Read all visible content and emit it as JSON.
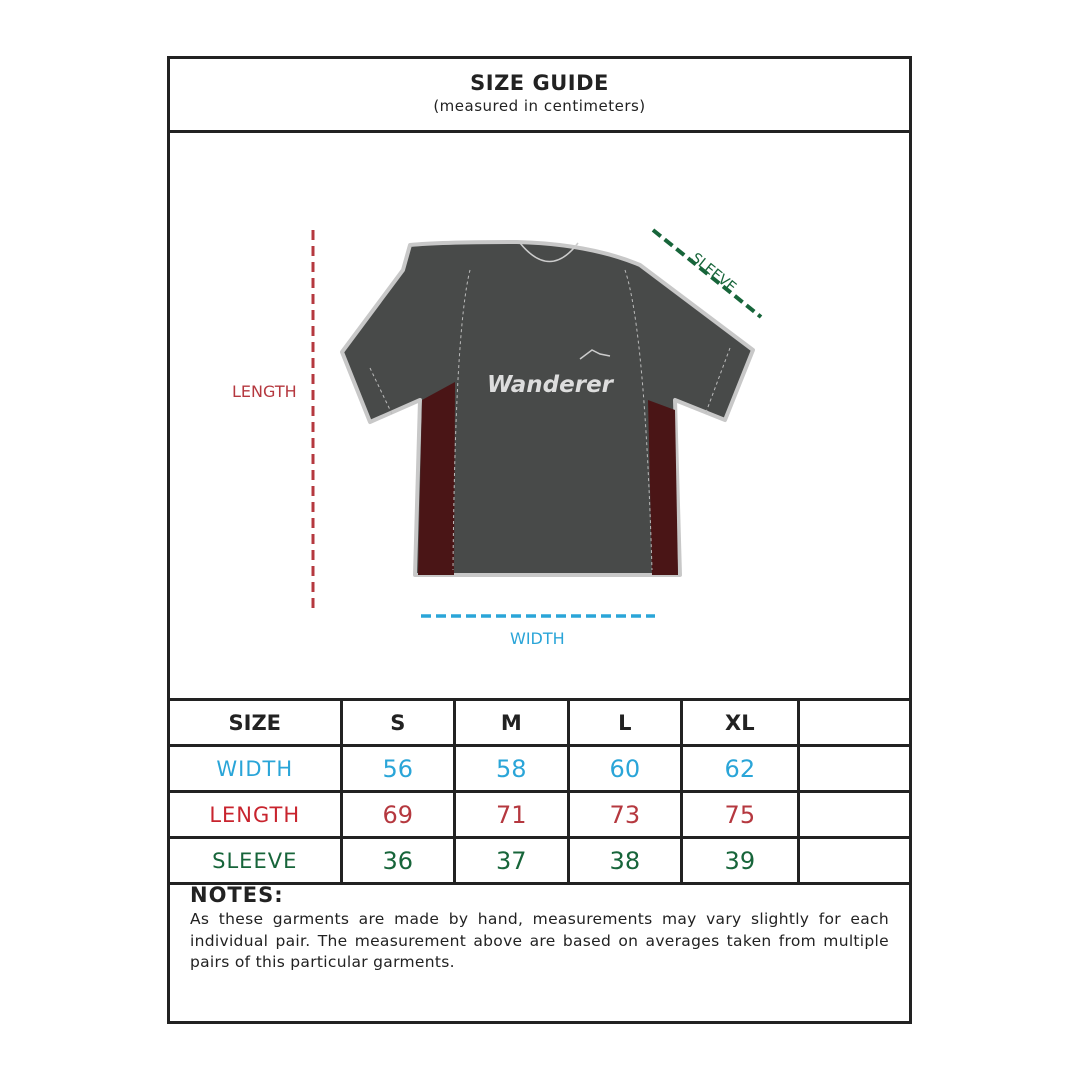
{
  "header": {
    "title": "SIZE GUIDE",
    "subtitle": "(measured in centimeters)"
  },
  "figure": {
    "length_label": "LENGTH",
    "width_label": "WIDTH",
    "sleeve_label": "SLEEVE",
    "shirt_logo_text": "Wanderer",
    "colors": {
      "length": "#b5383f",
      "width": "#2aa5d8",
      "sleeve": "#17653a",
      "shirt": "#484a49",
      "panel": "#4a1516"
    }
  },
  "table": {
    "headers": [
      "SIZE",
      "S",
      "M",
      "L",
      "XL",
      ""
    ],
    "rows": [
      {
        "label": "WIDTH",
        "values": [
          "56",
          "58",
          "60",
          "62",
          ""
        ],
        "color": "#2aa5d8",
        "label_color": "#2aa5d8"
      },
      {
        "label": "LENGTH",
        "values": [
          "69",
          "71",
          "73",
          "75",
          ""
        ],
        "color": "#b5383f",
        "label_color": "#c8242e"
      },
      {
        "label": "SLEEVE",
        "values": [
          "36",
          "37",
          "38",
          "39",
          ""
        ],
        "color": "#17653a",
        "label_color": "#17653a"
      }
    ]
  },
  "notes": {
    "title": "NOTES:",
    "body": "As these garments are made by hand, measurements may vary slightly for each individual pair. The measurement above are based on averages taken from multiple pairs of this particular garments."
  }
}
